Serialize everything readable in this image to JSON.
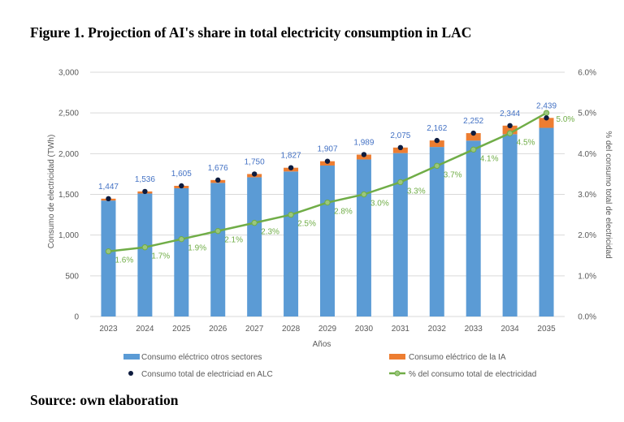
{
  "figure": {
    "title": "Figure 1. Projection of AI's share in total electricity consumption in LAC",
    "source": "Source: own elaboration"
  },
  "colors": {
    "other_sectors": "#5b9bd5",
    "ai": "#ed7d31",
    "total_marker": "#0d1b3e",
    "share_line": "#70ad47",
    "total_label": "#4472c4",
    "gridline": "#d9d9d9"
  },
  "chart_data": {
    "type": "bar",
    "title": "",
    "xlabel": "Años",
    "ylabel": "Consumo de electricidad (TWh)",
    "y2label": "% del consumo total de electricidad",
    "ylim": [
      0,
      3000
    ],
    "y2lim": [
      0,
      6
    ],
    "yticks": [
      "0",
      "500",
      "1,000",
      "1,500",
      "2,000",
      "2,500",
      "3,000"
    ],
    "y2ticks": [
      "0.0%",
      "1.0%",
      "2.0%",
      "3.0%",
      "4.0%",
      "5.0%",
      "6.0%"
    ],
    "grid": true,
    "legend_position": "bottom",
    "categories": [
      "2023",
      "2024",
      "2025",
      "2026",
      "2027",
      "2028",
      "2029",
      "2030",
      "2031",
      "2032",
      "2033",
      "2034",
      "2035"
    ],
    "series": [
      {
        "name": "Consumo eléctrico otros sectores",
        "type": "bar",
        "stack": "total",
        "values": [
          1424,
          1510,
          1575,
          1641,
          1710,
          1781,
          1854,
          1929,
          2007,
          2082,
          2160,
          2239,
          2317
        ]
      },
      {
        "name": "Consumo eléctrico de la IA",
        "type": "bar",
        "stack": "total",
        "values": [
          23,
          26,
          30,
          35,
          40,
          46,
          53,
          59,
          68,
          80,
          92,
          105,
          122
        ]
      },
      {
        "name": "Consumo total de electriciad en ALC",
        "type": "scatter",
        "axis": "left",
        "values": [
          1447,
          1536,
          1605,
          1676,
          1750,
          1827,
          1907,
          1989,
          2075,
          2162,
          2252,
          2344,
          2439
        ],
        "labels": [
          "1,447",
          "1,536",
          "1,605",
          "1,676",
          "1,750",
          "1,827",
          "1,907",
          "1,989",
          "2,075",
          "2,162",
          "2,252",
          "2,344",
          "2,439"
        ]
      },
      {
        "name": "% del consumo total de electricidad",
        "type": "line",
        "axis": "right",
        "values": [
          1.6,
          1.7,
          1.9,
          2.1,
          2.3,
          2.5,
          2.8,
          3.0,
          3.3,
          3.7,
          4.1,
          4.5,
          5.0
        ],
        "labels": [
          "1.6%",
          "1.7%",
          "1.9%",
          "2.1%",
          "2.3%",
          "2.5%",
          "2.8%",
          "3.0%",
          "3.3%",
          "3.7%",
          "4.1%",
          "4.5%",
          "5.0%"
        ]
      }
    ]
  }
}
